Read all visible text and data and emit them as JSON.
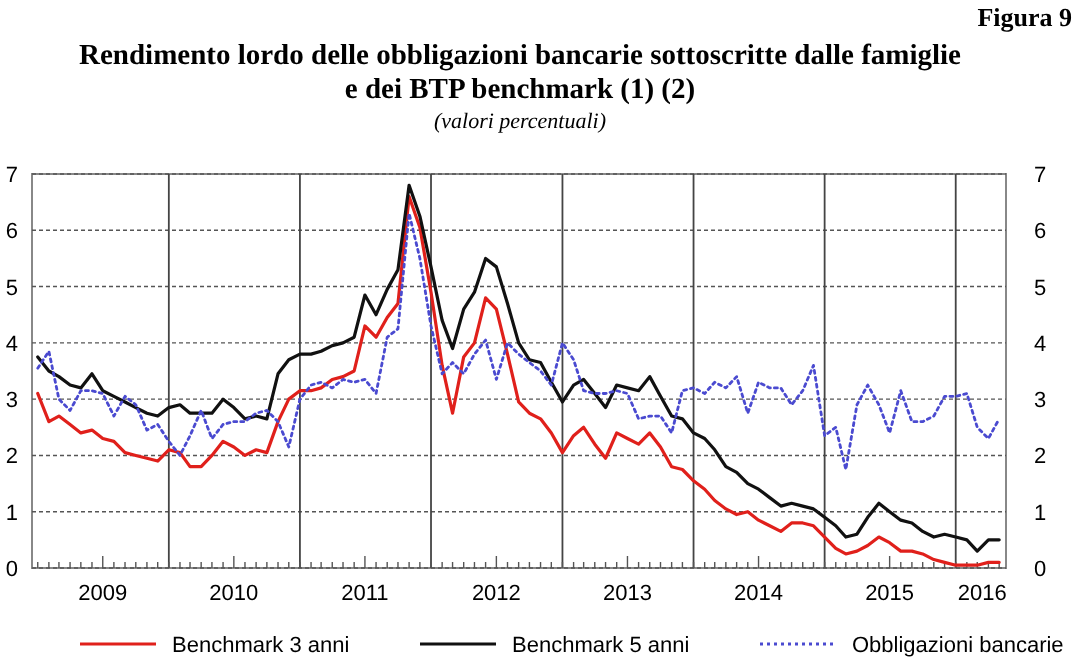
{
  "chart_data": {
    "type": "line",
    "title": "Rendimento lordo delle obbligazioni bancarie sottoscritte dalle famiglie\ne dei BTP benchmark (1) (2)",
    "subtitle": "(valori percentuali)",
    "annotations": [
      "Figura 9"
    ],
    "x": [
      "2009-01",
      "2009-02",
      "2009-03",
      "2009-04",
      "2009-05",
      "2009-06",
      "2009-07",
      "2009-08",
      "2009-09",
      "2009-10",
      "2009-11",
      "2009-12",
      "2010-01",
      "2010-02",
      "2010-03",
      "2010-04",
      "2010-05",
      "2010-06",
      "2010-07",
      "2010-08",
      "2010-09",
      "2010-10",
      "2010-11",
      "2010-12",
      "2011-01",
      "2011-02",
      "2011-03",
      "2011-04",
      "2011-05",
      "2011-06",
      "2011-07",
      "2011-08",
      "2011-09",
      "2011-10",
      "2011-11",
      "2011-12",
      "2012-01",
      "2012-02",
      "2012-03",
      "2012-04",
      "2012-05",
      "2012-06",
      "2012-07",
      "2012-08",
      "2012-09",
      "2012-10",
      "2012-11",
      "2012-12",
      "2013-01",
      "2013-02",
      "2013-03",
      "2013-04",
      "2013-05",
      "2013-06",
      "2013-07",
      "2013-08",
      "2013-09",
      "2013-10",
      "2013-11",
      "2013-12",
      "2014-01",
      "2014-02",
      "2014-03",
      "2014-04",
      "2014-05",
      "2014-06",
      "2014-07",
      "2014-08",
      "2014-09",
      "2014-10",
      "2014-11",
      "2014-12",
      "2015-01",
      "2015-02",
      "2015-03",
      "2015-04",
      "2015-05",
      "2015-06",
      "2015-07",
      "2015-08",
      "2015-09",
      "2015-10",
      "2015-11",
      "2015-12",
      "2016-01",
      "2016-02",
      "2016-03",
      "2016-04",
      "2016-05"
    ],
    "series": [
      {
        "name": "Benchmark 3 anni",
        "color": "#e0201b",
        "line_style": "solid",
        "values": [
          3.1,
          2.6,
          2.7,
          2.55,
          2.4,
          2.45,
          2.3,
          2.25,
          2.05,
          2.0,
          1.95,
          1.9,
          2.1,
          2.05,
          1.8,
          1.8,
          2.0,
          2.25,
          2.15,
          2.0,
          2.1,
          2.05,
          2.6,
          3.0,
          3.15,
          3.15,
          3.2,
          3.35,
          3.4,
          3.5,
          4.3,
          4.1,
          4.45,
          4.7,
          6.6,
          6.05,
          4.9,
          3.6,
          2.75,
          3.75,
          4.0,
          4.8,
          4.6,
          3.8,
          2.95,
          2.75,
          2.65,
          2.4,
          2.05,
          2.35,
          2.5,
          2.2,
          1.95,
          2.4,
          2.3,
          2.2,
          2.4,
          2.15,
          1.8,
          1.75,
          1.55,
          1.4,
          1.2,
          1.05,
          0.95,
          1.0,
          0.85,
          0.75,
          0.65,
          0.8,
          0.8,
          0.75,
          0.55,
          0.35,
          0.25,
          0.3,
          0.4,
          0.55,
          0.45,
          0.3,
          0.3,
          0.25,
          0.15,
          0.1,
          0.05,
          0.05,
          0.05,
          0.1,
          0.1
        ]
      },
      {
        "name": "Benchmark 5 anni",
        "color": "#111111",
        "line_style": "solid",
        "values": [
          3.75,
          3.5,
          3.4,
          3.25,
          3.2,
          3.45,
          3.15,
          3.05,
          2.95,
          2.85,
          2.75,
          2.7,
          2.85,
          2.9,
          2.75,
          2.75,
          2.75,
          3.0,
          2.85,
          2.65,
          2.7,
          2.65,
          3.45,
          3.7,
          3.8,
          3.8,
          3.85,
          3.95,
          4.0,
          4.1,
          4.85,
          4.5,
          4.95,
          5.3,
          6.8,
          6.25,
          5.35,
          4.4,
          3.9,
          4.6,
          4.9,
          5.5,
          5.35,
          4.7,
          4.0,
          3.7,
          3.65,
          3.3,
          2.95,
          3.25,
          3.35,
          3.1,
          2.85,
          3.25,
          3.2,
          3.15,
          3.4,
          3.05,
          2.7,
          2.65,
          2.4,
          2.3,
          2.1,
          1.8,
          1.7,
          1.5,
          1.4,
          1.25,
          1.1,
          1.15,
          1.1,
          1.05,
          0.9,
          0.75,
          0.55,
          0.6,
          0.9,
          1.15,
          1.0,
          0.85,
          0.8,
          0.65,
          0.55,
          0.6,
          0.55,
          0.5,
          0.3,
          0.5,
          0.5
        ]
      },
      {
        "name": "Obbligazioni bancarie",
        "color": "#4a4ad0",
        "line_style": "dotted",
        "values": [
          3.55,
          3.85,
          3.0,
          2.8,
          3.15,
          3.15,
          3.1,
          2.7,
          3.05,
          2.9,
          2.45,
          2.55,
          2.25,
          2.0,
          2.35,
          2.8,
          2.3,
          2.55,
          2.6,
          2.6,
          2.75,
          2.8,
          2.6,
          2.15,
          3.0,
          3.25,
          3.3,
          3.2,
          3.35,
          3.3,
          3.35,
          3.1,
          4.1,
          4.25,
          6.3,
          5.5,
          4.3,
          3.45,
          3.65,
          3.45,
          3.8,
          4.05,
          3.35,
          4.0,
          3.8,
          3.65,
          3.5,
          3.25,
          4.0,
          3.7,
          3.15,
          3.1,
          3.1,
          3.15,
          3.1,
          2.65,
          2.7,
          2.7,
          2.4,
          3.15,
          3.2,
          3.1,
          3.3,
          3.2,
          3.4,
          2.75,
          3.3,
          3.2,
          3.2,
          2.9,
          3.15,
          3.6,
          2.35,
          2.5,
          1.75,
          2.9,
          3.25,
          2.9,
          2.4,
          3.15,
          2.6,
          2.6,
          2.7,
          3.05,
          3.05,
          3.1,
          2.5,
          2.3,
          2.65
        ]
      }
    ],
    "xlim": [
      "2008-12-16",
      "2016-05-20"
    ],
    "xticks": [
      {
        "value": "2009-07-01",
        "label": "2009"
      },
      {
        "value": "2010-01-01",
        "label": null
      },
      {
        "value": "2010-07-01",
        "label": "2010"
      },
      {
        "value": "2011-01-01",
        "label": null
      },
      {
        "value": "2011-07-01",
        "label": "2011"
      },
      {
        "value": "2012-01-01",
        "label": null
      },
      {
        "value": "2012-07-01",
        "label": "2012"
      },
      {
        "value": "2013-01-01",
        "label": null
      },
      {
        "value": "2013-07-01",
        "label": "2013"
      },
      {
        "value": "2014-01-01",
        "label": null
      },
      {
        "value": "2014-07-01",
        "label": "2014"
      },
      {
        "value": "2015-01-01",
        "label": null
      },
      {
        "value": "2015-07-01",
        "label": "2015"
      },
      {
        "value": "2016-01-01",
        "label": null
      },
      {
        "value": "2016-03-15",
        "label": "2016"
      }
    ],
    "ylim": [
      0,
      7
    ],
    "yticks": [
      0,
      1,
      2,
      3,
      4,
      5,
      6,
      7
    ],
    "y2lim": [
      0,
      7
    ],
    "y2ticks": [
      0,
      1,
      2,
      3,
      4,
      5,
      6,
      7
    ],
    "grid": true,
    "legend": "bottom"
  }
}
